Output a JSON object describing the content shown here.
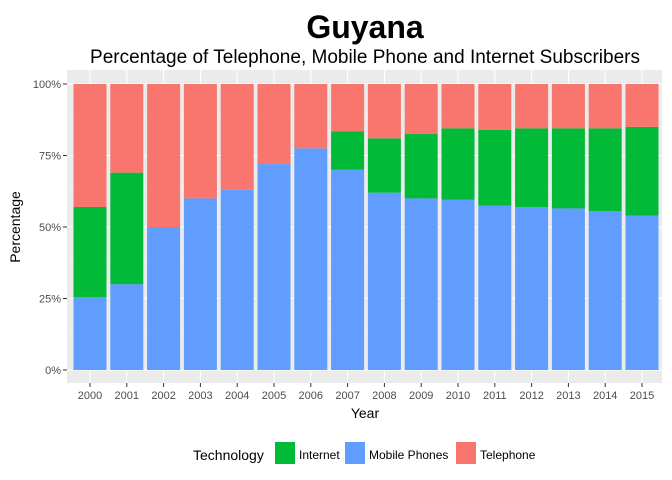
{
  "chart_data": {
    "type": "bar",
    "stacked": true,
    "percent": true,
    "title": "Guyana",
    "subtitle": "Percentage of Telephone, Mobile Phone and Internet Subscribers",
    "xlabel": "Year",
    "ylabel": "Percentage",
    "ylim": [
      0,
      100
    ],
    "yticks": [
      "0%",
      "25%",
      "50%",
      "75%",
      "100%"
    ],
    "categories": [
      "2000",
      "2001",
      "2002",
      "2003",
      "2004",
      "2005",
      "2006",
      "2007",
      "2008",
      "2009",
      "2010",
      "2011",
      "2012",
      "2013",
      "2014",
      "2015"
    ],
    "series": [
      {
        "name": "Mobile Phones",
        "color": "#619CFF",
        "values": [
          25.5,
          30,
          50,
          60,
          63,
          72,
          77.5,
          70,
          62,
          60,
          59.5,
          57.5,
          57,
          56.5,
          55.5,
          54
        ]
      },
      {
        "name": "Internet",
        "color": "#00BA38",
        "values": [
          31.5,
          39,
          0,
          0,
          0,
          0,
          0,
          13.5,
          19,
          22.5,
          25,
          26.5,
          27.5,
          28,
          29,
          31
        ]
      },
      {
        "name": "Telephone",
        "color": "#F8766D",
        "values": [
          43,
          31,
          50,
          40,
          37,
          28,
          22.5,
          16.5,
          19,
          17.5,
          15.5,
          16,
          15.5,
          15.5,
          15.5,
          15
        ]
      }
    ],
    "grid": true,
    "legend": {
      "title": "Technology",
      "position": "bottom",
      "entries": [
        {
          "label": "Internet",
          "color": "#00BA38"
        },
        {
          "label": "Mobile Phones",
          "color": "#619CFF"
        },
        {
          "label": "Telephone",
          "color": "#F8766D"
        }
      ]
    },
    "panel_color": "#EBEBEB"
  }
}
